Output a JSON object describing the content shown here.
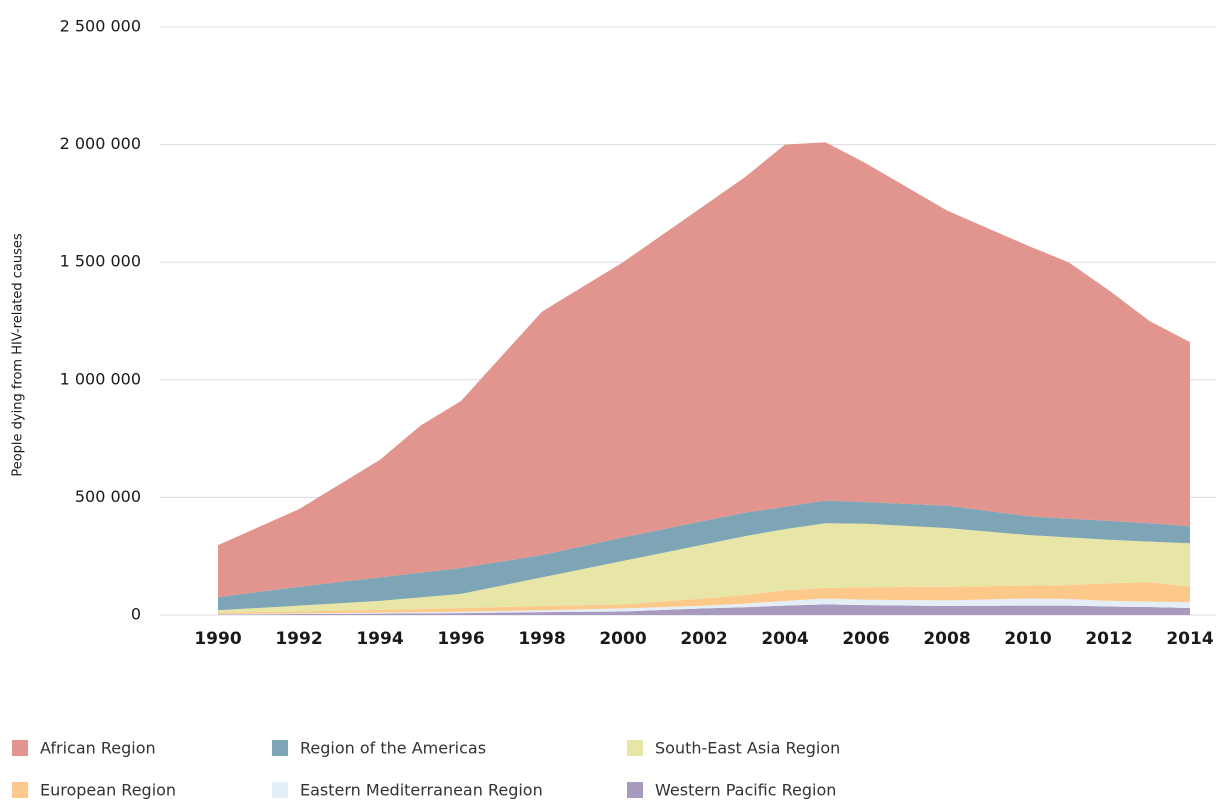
{
  "chart_data": {
    "type": "stacked_area",
    "y_label": "People dying from HIV-related causes",
    "x": [
      1990,
      1992,
      1994,
      1995,
      1996,
      1998,
      2000,
      2002,
      2003,
      2004,
      2005,
      2006,
      2008,
      2010,
      2011,
      2012,
      2013,
      2014
    ],
    "xlim": [
      1990,
      2014
    ],
    "xticks": [
      1990,
      1992,
      1994,
      1996,
      1998,
      2000,
      2002,
      2004,
      2006,
      2008,
      2010,
      2012,
      2014
    ],
    "ylim": [
      0,
      2500000
    ],
    "yticks": [
      0,
      {
        "value": 500000,
        "label": "500 000"
      },
      {
        "value": 1000000,
        "label": "1 000 000"
      },
      {
        "value": 1500000,
        "label": "1 500 000"
      },
      {
        "value": 2000000,
        "label": "2 000 000"
      },
      {
        "value": 2500000,
        "label": "2 500 000"
      }
    ],
    "grid": true,
    "series": [
      {
        "name": "African Region",
        "color": "#e2958e",
        "values": [
          221000,
          330000,
          500000,
          625000,
          710000,
          1035000,
          1170000,
          1340000,
          1425000,
          1540000,
          1523000,
          1440000,
          1255000,
          1150000,
          1090000,
          980000,
          860000,
          783000
        ]
      },
      {
        "name": "Region of the Americas",
        "color": "#7ea5b5",
        "values": [
          56000,
          80000,
          100000,
          105000,
          110000,
          95000,
          100000,
          100000,
          100000,
          95000,
          97000,
          92000,
          95000,
          80000,
          80000,
          80000,
          78000,
          72000
        ]
      },
      {
        "name": "South-East Asia  Region",
        "color": "#e8e6a6",
        "values": [
          10000,
          25000,
          38000,
          50000,
          60000,
          122000,
          185000,
          230000,
          250000,
          260000,
          275000,
          270000,
          250000,
          215000,
          203000,
          185000,
          172000,
          185000
        ]
      },
      {
        "name": "European Region",
        "color": "#fdc98a",
        "values": [
          6000,
          8000,
          12000,
          13000,
          16000,
          18000,
          17000,
          30000,
          37000,
          45000,
          45000,
          53000,
          58000,
          55000,
          59000,
          75000,
          83000,
          65000
        ]
      },
      {
        "name": "Eastern Mediterranean Region",
        "color": "#e4eef6",
        "values": [
          2000,
          3000,
          4000,
          5000,
          6000,
          8000,
          13000,
          12000,
          15000,
          20000,
          25000,
          23000,
          24000,
          30000,
          28000,
          24000,
          23000,
          25000
        ]
      },
      {
        "name": "Western Pacific Region",
        "color": "#a899be",
        "values": [
          2000,
          4000,
          6000,
          7000,
          8000,
          12000,
          15000,
          28000,
          33000,
          40000,
          45000,
          42000,
          38000,
          40000,
          40000,
          36000,
          34000,
          30000
        ]
      }
    ]
  }
}
